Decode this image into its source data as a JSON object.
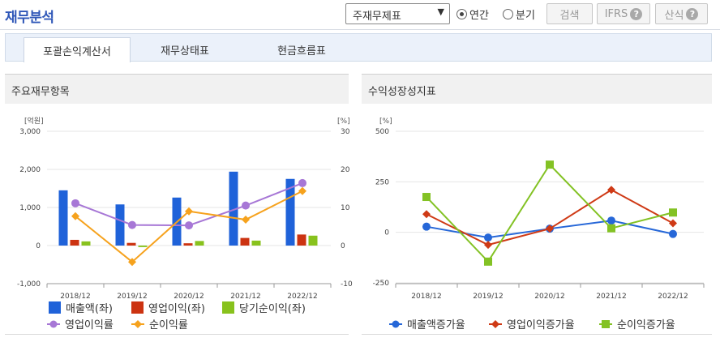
{
  "header": {
    "title": "재무분석",
    "select_value": "주재무제표",
    "radio_annual": "연간",
    "radio_quarter": "분기",
    "search_label": "검색",
    "ifrs_label": "IFRS",
    "formula_label": "산식"
  },
  "tabs": [
    "포괄손익계산서",
    "재무상태표",
    "현금흐름표"
  ],
  "panels": {
    "left_title": "주요재무항목",
    "right_title": "수익성장성지표"
  },
  "colors": {
    "revenue": "#1f62d9",
    "op_income": "#cc3311",
    "net_income": "#88c21d",
    "op_margin": "#a777d6",
    "net_margin": "#f6a21d",
    "revenue_growth": "#2667d8",
    "op_growth": "#cf3a16",
    "net_growth": "#83c224"
  },
  "legend_left": [
    "매출액(좌)",
    "영업이익(좌)",
    "당기순이익(좌)",
    "영업이익률",
    "순이익률"
  ],
  "legend_right": [
    "매출액증가율",
    "영업이익증가율",
    "순이익증가율"
  ],
  "chart_data": [
    {
      "type": "bar",
      "categories": [
        "2018/12",
        "2019/12",
        "2020/12",
        "2021/12",
        "2022/12"
      ],
      "left_unit": "[억원]",
      "right_unit": "[%]",
      "left_ticks": [
        "3,000",
        "2,000",
        "1,000",
        "0",
        "-1,000"
      ],
      "right_ticks": [
        "30",
        "20",
        "10",
        "0",
        "-10"
      ],
      "ylim_left": [
        -1000,
        3000
      ],
      "ylim_right": [
        -10,
        30
      ],
      "series": [
        {
          "name": "매출액(좌)",
          "axis": "left",
          "kind": "bar",
          "values": [
            1450,
            1080,
            1260,
            1940,
            1750
          ]
        },
        {
          "name": "영업이익(좌)",
          "axis": "left",
          "kind": "bar",
          "values": [
            150,
            70,
            60,
            200,
            290
          ]
        },
        {
          "name": "당기순이익(좌)",
          "axis": "left",
          "kind": "bar",
          "values": [
            110,
            -40,
            120,
            130,
            260
          ]
        },
        {
          "name": "영업이익률",
          "axis": "right",
          "kind": "line",
          "values": [
            11.1,
            5.4,
            5.3,
            10.5,
            16.4
          ]
        },
        {
          "name": "순이익률",
          "axis": "right",
          "kind": "line",
          "values": [
            7.7,
            -4.3,
            9.0,
            6.8,
            14.3
          ]
        }
      ]
    },
    {
      "type": "line",
      "categories": [
        "2018/12",
        "2019/12",
        "2020/12",
        "2021/12",
        "2022/12"
      ],
      "unit": "[%]",
      "ticks": [
        "500",
        "250",
        "0",
        "-250"
      ],
      "ylim": [
        -250,
        500
      ],
      "series": [
        {
          "name": "매출액증가율",
          "values": [
            28,
            -26,
            18,
            58,
            -8
          ]
        },
        {
          "name": "영업이익증가율",
          "values": [
            90,
            -62,
            18,
            210,
            45
          ]
        },
        {
          "name": "순이익증가율",
          "values": [
            175,
            -145,
            335,
            20,
            98
          ]
        }
      ]
    }
  ]
}
